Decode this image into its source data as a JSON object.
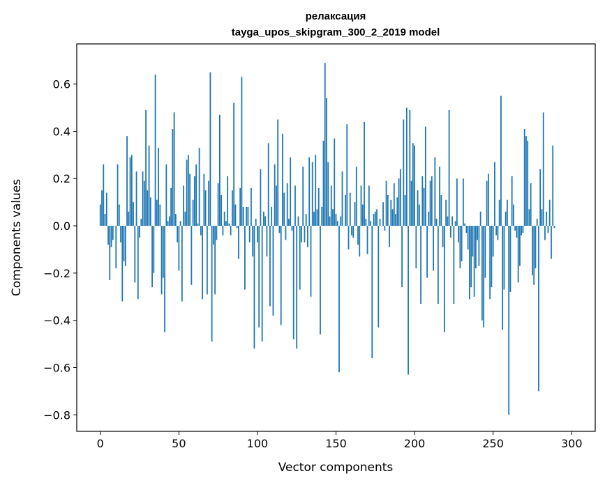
{
  "chart_data": {
    "type": "bar",
    "title_line1": "релаксация",
    "title_line2": "tayga_upos_skipgram_300_2_2019 model",
    "xlabel": "Vector components",
    "ylabel": "Components values",
    "xlim": [
      -15,
      315
    ],
    "ylim": [
      -0.87,
      0.77
    ],
    "x_ticks": [
      0,
      50,
      100,
      150,
      200,
      250,
      300
    ],
    "x_tick_labels": [
      "0",
      "50",
      "100",
      "150",
      "200",
      "250",
      "300"
    ],
    "y_ticks": [
      -0.8,
      -0.6,
      -0.4,
      -0.2,
      0.0,
      0.2,
      0.4,
      0.6
    ],
    "y_tick_labels": [
      "−0.8",
      "−0.6",
      "−0.4",
      "−0.2",
      "0.0",
      "0.2",
      "0.4",
      "0.6"
    ],
    "color": "#1f77b4",
    "values": [
      0.09,
      0.15,
      0.26,
      0.05,
      0.14,
      -0.08,
      -0.23,
      -0.09,
      -0.06,
      0.0,
      -0.18,
      0.26,
      0.09,
      -0.07,
      -0.32,
      -0.15,
      -0.17,
      0.38,
      0.06,
      0.29,
      0.3,
      0.1,
      -0.24,
      0.23,
      -0.31,
      -0.05,
      0.03,
      0.23,
      0.19,
      0.49,
      0.15,
      0.34,
      0.12,
      -0.26,
      -0.2,
      0.64,
      0.11,
      0.33,
      0.09,
      -0.29,
      -0.22,
      -0.45,
      0.26,
      0.02,
      0.04,
      0.16,
      0.41,
      0.48,
      0.05,
      -0.07,
      -0.19,
      0.02,
      -0.32,
      0.17,
      0.06,
      0.28,
      0.3,
      0.22,
      -0.25,
      0.11,
      0.21,
      0.26,
      0.01,
      0.33,
      -0.04,
      -0.31,
      0.22,
      0.15,
      -0.29,
      0.19,
      0.65,
      -0.49,
      -0.08,
      -0.29,
      -0.06,
      0.18,
      0.47,
      0.13,
      -0.04,
      0.06,
      0.02,
      0.21,
      0.01,
      -0.04,
      0.15,
      0.52,
      0.09,
      -0.01,
      -0.14,
      0.16,
      0.63,
      0.08,
      -0.27,
      0.08,
      0.08,
      -0.07,
      0.16,
      -0.13,
      -0.52,
      0.03,
      -0.07,
      -0.43,
      0.24,
      -0.49,
      0.06,
      0.04,
      -0.13,
      0.35,
      -0.34,
      0.08,
      -0.38,
      0.26,
      0.17,
      0.45,
      -0.03,
      -0.42,
      0.39,
      0.14,
      -0.06,
      0.18,
      0.03,
      0.29,
      -0.02,
      -0.48,
      0.17,
      -0.52,
      0.04,
      -0.27,
      -0.07,
      0.25,
      -0.07,
      0.05,
      -0.09,
      0.29,
      -0.3,
      0.27,
      0.06,
      0.3,
      0.07,
      0.16,
      -0.46,
      0.08,
      0.36,
      0.69,
      0.54,
      0.27,
      0.04,
      0.17,
      0.07,
      0.37,
      0.05,
      0.02,
      -0.62,
      0.04,
      0.23,
      0.0,
      0.13,
      0.43,
      -0.1,
      0.14,
      -0.04,
      -0.05,
      0.1,
      0.25,
      -0.08,
      -0.13,
      0.17,
      0.09,
      0.44,
      0.03,
      -0.12,
      0.17,
      0.02,
      -0.56,
      0.05,
      0.06,
      0.07,
      -0.43,
      0.03,
      0.0,
      0.1,
      -0.02,
      0.19,
      0.13,
      -0.09,
      0.11,
      0.07,
      0.18,
      0.05,
      0.12,
      0.2,
      0.24,
      -0.26,
      0.45,
      0.13,
      0.5,
      -0.63,
      0.49,
      0.19,
      0.35,
      0.34,
      -0.18,
      0.15,
      0.09,
      -0.33,
      0.21,
      0.16,
      0.42,
      -0.22,
      0.06,
      0.19,
      0.21,
      -0.19,
      0.29,
      0.03,
      -0.33,
      0.25,
      0.13,
      -0.09,
      -0.45,
      0.11,
      0.04,
      0.49,
      -0.05,
      0.04,
      -0.33,
      0.02,
      0.2,
      -0.07,
      -0.18,
      -0.15,
      0.2,
      0.01,
      -0.03,
      -0.1,
      -0.31,
      -0.26,
      -0.13,
      -0.3,
      -0.18,
      -0.06,
      -0.17,
      0.06,
      -0.4,
      -0.43,
      -0.22,
      0.19,
      0.22,
      -0.31,
      -0.26,
      -0.13,
      0.27,
      -0.04,
      -0.06,
      0.11,
      0.55,
      -0.44,
      -0.27,
      0.06,
      0.11,
      -0.8,
      -0.28,
      0.21,
      0.09,
      -0.02,
      -0.05,
      -0.24,
      -0.17,
      -0.04,
      -0.03,
      0.41,
      0.38,
      0.36,
      0.07,
      0.18,
      -0.21,
      -0.25,
      -0.18,
      0.03,
      -0.7,
      0.24,
      0.07,
      0.48,
      -0.06,
      0.06,
      -0.03,
      0.11,
      -0.14,
      0.34,
      -0.01
    ]
  }
}
